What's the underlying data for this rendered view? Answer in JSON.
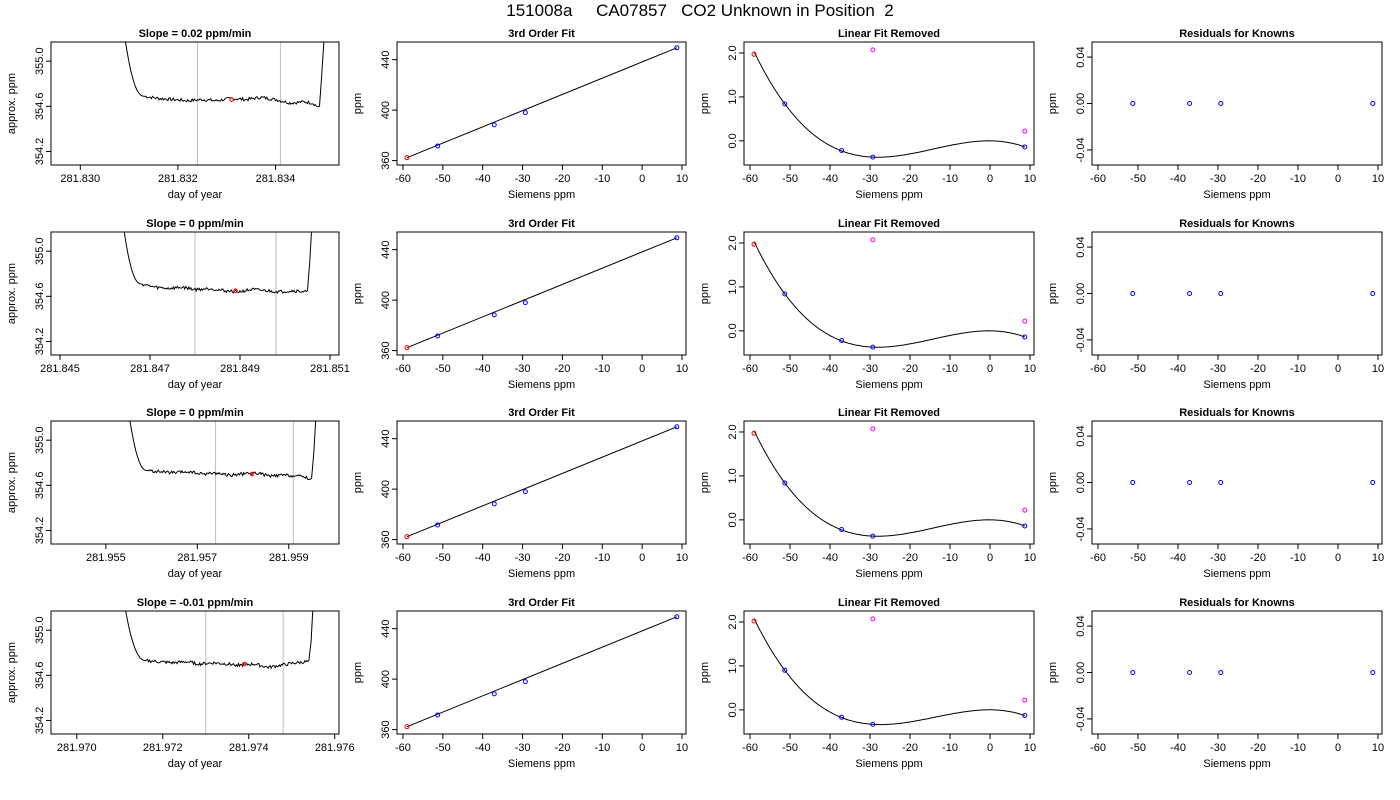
{
  "figure": {
    "title": "151008a     CA07857   CO2 Unknown in Position  2"
  },
  "chart_data": [
    {
      "type": "line",
      "row": 1,
      "col": 1,
      "title": "Slope =  0.02  ppm/min",
      "xlabel": "day of year",
      "ylabel": "approx. ppm",
      "xlim": [
        281.8294,
        281.8353
      ],
      "ylim": [
        354.08,
        355.17
      ],
      "xticks": [
        281.83,
        281.832,
        281.834
      ],
      "xticklabels": [
        "281.830",
        "281.832",
        "281.834"
      ],
      "yticks": [
        354.2,
        354.6,
        355.0
      ],
      "yticklabels": [
        "354.2",
        "354.6",
        "355.0"
      ],
      "vlines": [
        281.8324,
        281.8341
      ],
      "trace": {
        "start": 281.8309,
        "rise_end": 281.8311,
        "plateau_start": 281.8313,
        "end": 281.835,
        "final_rise_start": 281.8349,
        "top": 355.25,
        "plateau": [
          354.69,
          354.67,
          354.66,
          354.65,
          354.66,
          354.65,
          354.67,
          354.66,
          354.68,
          354.66,
          354.63,
          354.64,
          354.62
        ],
        "final_dip": 354.59
      },
      "marker": {
        "x": 281.8331,
        "y": 354.66
      }
    },
    {
      "type": "line",
      "row": 1,
      "col": 2,
      "title": "3rd Order Fit",
      "xlabel": "Siemens ppm",
      "ylabel": "ppm",
      "xlim": [
        -61.5,
        11.0
      ],
      "ylim": [
        356.5,
        454.0
      ],
      "xticks": [
        -60,
        -50,
        -40,
        -30,
        -20,
        -10,
        0,
        10
      ],
      "yticks": [
        360,
        400,
        440
      ],
      "yticklabels": [
        "360",
        "400",
        "440"
      ],
      "knowns": [
        {
          "x": -51.3,
          "y": 371.6
        },
        {
          "x": -37.1,
          "y": 388.3
        },
        {
          "x": -29.3,
          "y": 398.0
        },
        {
          "x": 8.7,
          "y": 449.4
        }
      ],
      "unknown": {
        "x": -59.0,
        "y": 362.3
      },
      "fit_line": {
        "x1": -59.0,
        "y1": 362.3,
        "x2": 8.7,
        "y2": 449.4
      }
    },
    {
      "type": "line",
      "row": 1,
      "col": 3,
      "title": "Linear Fit Removed",
      "xlabel": "Siemens ppm",
      "ylabel": "ppm",
      "xlim": [
        -61.5,
        11.0
      ],
      "ylim": [
        -0.55,
        2.25
      ],
      "xticks": [
        -60,
        -50,
        -40,
        -30,
        -20,
        -10,
        0,
        10
      ],
      "yticks": [
        0.0,
        1.0,
        2.0
      ],
      "yticklabels": [
        "0.0",
        "1.0",
        "2.0"
      ],
      "knowns": [
        {
          "x": -51.3,
          "y": 0.84
        },
        {
          "x": -37.1,
          "y": -0.22
        },
        {
          "x": -29.3,
          "y": -0.37
        },
        {
          "x": 8.7,
          "y": -0.14
        }
      ],
      "unknown": {
        "x": -59.0,
        "y": 1.97
      },
      "magenta": [
        {
          "x": -29.3,
          "y": 2.07
        },
        {
          "x": 8.7,
          "y": 0.22
        }
      ],
      "curve": {
        "x0": -59.0,
        "x1": 8.7,
        "ya": -0.37,
        "yb": -0.14
      }
    },
    {
      "type": "scatter",
      "row": 1,
      "col": 4,
      "title": "Residuals for Knowns",
      "xlabel": "Siemens ppm",
      "ylabel": "ppm",
      "xlim": [
        -61.5,
        11.0
      ],
      "ylim": [
        -0.053,
        0.053
      ],
      "xticks": [
        -60,
        -50,
        -40,
        -30,
        -20,
        -10,
        0,
        10
      ],
      "yticks": [
        -0.04,
        0.0,
        0.04
      ],
      "yticklabels": [
        "-0.04",
        "0.00",
        "0.04"
      ],
      "points": [
        {
          "x": -51.3,
          "y": 0.0
        },
        {
          "x": -37.1,
          "y": 0.0
        },
        {
          "x": -29.3,
          "y": 0.0
        },
        {
          "x": 8.7,
          "y": 0.0
        }
      ]
    },
    {
      "type": "line",
      "row": 2,
      "col": 1,
      "title": "Slope =  0  ppm/min",
      "xlabel": "day of year",
      "ylabel": "approx. ppm",
      "xlim": [
        281.8448,
        281.8512
      ],
      "ylim": [
        354.08,
        355.17
      ],
      "xticks": [
        281.845,
        281.847,
        281.849,
        281.851
      ],
      "xticklabels": [
        "281.845",
        "281.847",
        "281.849",
        "281.851"
      ],
      "yticks": [
        354.2,
        354.6,
        355.0
      ],
      "yticklabels": [
        "354.2",
        "354.6",
        "355.0"
      ],
      "vlines": [
        281.848,
        281.8498
      ],
      "trace": {
        "start": 281.8464,
        "rise_end": 281.8466,
        "plateau_start": 281.8468,
        "end": 281.8506,
        "final_rise_start": 281.8505,
        "top": 355.25,
        "plateau": [
          354.71,
          354.68,
          354.67,
          354.68,
          354.66,
          354.67,
          354.65,
          354.64,
          354.66,
          354.65,
          354.64,
          354.65,
          354.64
        ],
        "final_dip": 354.64
      },
      "marker": {
        "x": 281.8489,
        "y": 354.65
      }
    },
    {
      "type": "line",
      "row": 2,
      "col": 2,
      "title": "3rd Order Fit",
      "xlabel": "Siemens ppm",
      "ylabel": "ppm",
      "xlim": [
        -61.5,
        11.0
      ],
      "ylim": [
        356.5,
        454.0
      ],
      "xticks": [
        -60,
        -50,
        -40,
        -30,
        -20,
        -10,
        0,
        10
      ],
      "yticks": [
        360,
        400,
        440
      ],
      "yticklabels": [
        "360",
        "400",
        "440"
      ],
      "knowns": [
        {
          "x": -51.3,
          "y": 371.6
        },
        {
          "x": -37.1,
          "y": 388.3
        },
        {
          "x": -29.3,
          "y": 398.0
        },
        {
          "x": 8.7,
          "y": 449.4
        }
      ],
      "unknown": {
        "x": -59.0,
        "y": 362.3
      },
      "fit_line": {
        "x1": -59.0,
        "y1": 362.3,
        "x2": 8.7,
        "y2": 449.4
      }
    },
    {
      "type": "line",
      "row": 2,
      "col": 3,
      "title": "Linear Fit Removed",
      "xlabel": "Siemens ppm",
      "ylabel": "ppm",
      "xlim": [
        -61.5,
        11.0
      ],
      "ylim": [
        -0.55,
        2.25
      ],
      "xticks": [
        -60,
        -50,
        -40,
        -30,
        -20,
        -10,
        0,
        10
      ],
      "yticks": [
        0.0,
        1.0,
        2.0
      ],
      "yticklabels": [
        "0.0",
        "1.0",
        "2.0"
      ],
      "knowns": [
        {
          "x": -51.3,
          "y": 0.84
        },
        {
          "x": -37.1,
          "y": -0.22
        },
        {
          "x": -29.3,
          "y": -0.37
        },
        {
          "x": 8.7,
          "y": -0.14
        }
      ],
      "unknown": {
        "x": -59.0,
        "y": 1.97
      },
      "magenta": [
        {
          "x": -29.3,
          "y": 2.07
        },
        {
          "x": 8.7,
          "y": 0.22
        }
      ],
      "curve": {
        "x0": -59.0,
        "x1": 8.7,
        "ya": -0.37,
        "yb": -0.14
      }
    },
    {
      "type": "scatter",
      "row": 2,
      "col": 4,
      "title": "Residuals for Knowns",
      "xlabel": "Siemens ppm",
      "ylabel": "ppm",
      "xlim": [
        -61.5,
        11.0
      ],
      "ylim": [
        -0.053,
        0.053
      ],
      "xticks": [
        -60,
        -50,
        -40,
        -30,
        -20,
        -10,
        0,
        10
      ],
      "yticks": [
        -0.04,
        0.0,
        0.04
      ],
      "yticklabels": [
        "-0.04",
        "0.00",
        "0.04"
      ],
      "points": [
        {
          "x": -51.3,
          "y": 0.0
        },
        {
          "x": -37.1,
          "y": 0.0
        },
        {
          "x": -29.3,
          "y": 0.0
        },
        {
          "x": 8.7,
          "y": 0.0
        }
      ]
    },
    {
      "type": "line",
      "row": 3,
      "col": 1,
      "title": "Slope =  0  ppm/min",
      "xlabel": "day of year",
      "ylabel": "approx. ppm",
      "xlim": [
        281.9538,
        281.9601
      ],
      "ylim": [
        354.08,
        355.17
      ],
      "xticks": [
        281.955,
        281.957,
        281.959
      ],
      "xticklabels": [
        "281.955",
        "281.957",
        "281.959"
      ],
      "yticks": [
        354.2,
        354.6,
        355.0
      ],
      "yticklabels": [
        "354.2",
        "354.6",
        "355.0"
      ],
      "vlines": [
        281.9574,
        281.9591
      ],
      "trace": {
        "start": 281.9555,
        "rise_end": 281.9557,
        "plateau_start": 281.9559,
        "end": 281.9596,
        "final_rise_start": 281.9595,
        "top": 355.25,
        "plateau": [
          354.73,
          354.72,
          354.71,
          354.72,
          354.7,
          354.71,
          354.69,
          354.7,
          354.71,
          354.68,
          354.69,
          354.68,
          354.67
        ],
        "final_dip": 354.65
      },
      "marker": {
        "x": 281.9582,
        "y": 354.7
      }
    },
    {
      "type": "line",
      "row": 3,
      "col": 2,
      "title": "3rd Order Fit",
      "xlabel": "Siemens ppm",
      "ylabel": "ppm",
      "xlim": [
        -61.5,
        11.0
      ],
      "ylim": [
        356.5,
        454.0
      ],
      "xticks": [
        -60,
        -50,
        -40,
        -30,
        -20,
        -10,
        0,
        10
      ],
      "yticks": [
        360,
        400,
        440
      ],
      "yticklabels": [
        "360",
        "400",
        "440"
      ],
      "knowns": [
        {
          "x": -51.3,
          "y": 371.6
        },
        {
          "x": -37.1,
          "y": 388.3
        },
        {
          "x": -29.3,
          "y": 398.0
        },
        {
          "x": 8.7,
          "y": 449.4
        }
      ],
      "unknown": {
        "x": -59.0,
        "y": 362.3
      },
      "fit_line": {
        "x1": -59.0,
        "y1": 362.3,
        "x2": 8.7,
        "y2": 449.4
      }
    },
    {
      "type": "line",
      "row": 3,
      "col": 3,
      "title": "Linear Fit Removed",
      "xlabel": "Siemens ppm",
      "ylabel": "ppm",
      "xlim": [
        -61.5,
        11.0
      ],
      "ylim": [
        -0.55,
        2.25
      ],
      "xticks": [
        -60,
        -50,
        -40,
        -30,
        -20,
        -10,
        0,
        10
      ],
      "yticks": [
        0.0,
        1.0,
        2.0
      ],
      "yticklabels": [
        "0.0",
        "1.0",
        "2.0"
      ],
      "knowns": [
        {
          "x": -51.3,
          "y": 0.84
        },
        {
          "x": -37.1,
          "y": -0.22
        },
        {
          "x": -29.3,
          "y": -0.37
        },
        {
          "x": 8.7,
          "y": -0.14
        }
      ],
      "unknown": {
        "x": -59.0,
        "y": 1.97
      },
      "magenta": [
        {
          "x": -29.3,
          "y": 2.07
        },
        {
          "x": 8.7,
          "y": 0.22
        }
      ],
      "curve": {
        "x0": -59.0,
        "x1": 8.7,
        "ya": -0.37,
        "yb": -0.14
      }
    },
    {
      "type": "scatter",
      "row": 3,
      "col": 4,
      "title": "Residuals for Knowns",
      "xlabel": "Siemens ppm",
      "ylabel": "ppm",
      "xlim": [
        -61.5,
        11.0
      ],
      "ylim": [
        -0.053,
        0.053
      ],
      "xticks": [
        -60,
        -50,
        -40,
        -30,
        -20,
        -10,
        0,
        10
      ],
      "yticks": [
        -0.04,
        0.0,
        0.04
      ],
      "yticklabels": [
        "-0.04",
        "0.00",
        "0.04"
      ],
      "points": [
        {
          "x": -51.3,
          "y": 0.0
        },
        {
          "x": -37.1,
          "y": 0.0
        },
        {
          "x": -29.3,
          "y": 0.0
        },
        {
          "x": 8.7,
          "y": 0.0
        }
      ]
    },
    {
      "type": "line",
      "row": 4,
      "col": 1,
      "title": "Slope =  -0.01  ppm/min",
      "xlabel": "day of year",
      "ylabel": "approx. ppm",
      "xlim": [
        281.9694,
        281.9761
      ],
      "ylim": [
        354.08,
        355.17
      ],
      "xticks": [
        281.97,
        281.972,
        281.974,
        281.976
      ],
      "xticklabels": [
        "281.970",
        "281.972",
        "281.974",
        "281.976"
      ],
      "yticks": [
        354.2,
        354.6,
        355.0
      ],
      "yticklabels": [
        "354.2",
        "354.6",
        "355.0"
      ],
      "vlines": [
        281.973,
        281.9748
      ],
      "trace": {
        "start": 281.9711,
        "rise_end": 281.9713,
        "plateau_start": 281.9716,
        "end": 281.9755,
        "final_rise_start": 281.9754,
        "top": 355.25,
        "plateau": [
          354.73,
          354.72,
          354.71,
          354.72,
          354.7,
          354.71,
          354.7,
          354.69,
          354.7,
          354.67,
          354.69,
          354.71,
          354.72
        ],
        "final_dip": 354.72
      },
      "marker": {
        "x": 281.9739,
        "y": 354.7
      }
    },
    {
      "type": "line",
      "row": 4,
      "col": 2,
      "title": "3rd Order Fit",
      "xlabel": "Siemens ppm",
      "ylabel": "ppm",
      "xlim": [
        -61.5,
        11.0
      ],
      "ylim": [
        356.5,
        454.0
      ],
      "xticks": [
        -60,
        -50,
        -40,
        -30,
        -20,
        -10,
        0,
        10
      ],
      "yticks": [
        360,
        400,
        440
      ],
      "yticklabels": [
        "360",
        "400",
        "440"
      ],
      "knowns": [
        {
          "x": -51.3,
          "y": 371.6
        },
        {
          "x": -37.1,
          "y": 388.3
        },
        {
          "x": -29.3,
          "y": 398.0
        },
        {
          "x": 8.7,
          "y": 449.4
        }
      ],
      "unknown": {
        "x": -59.0,
        "y": 362.3
      },
      "fit_line": {
        "x1": -59.0,
        "y1": 362.3,
        "x2": 8.7,
        "y2": 449.4
      }
    },
    {
      "type": "line",
      "row": 4,
      "col": 3,
      "title": "Linear Fit Removed",
      "xlabel": "Siemens ppm",
      "ylabel": "ppm",
      "xlim": [
        -61.5,
        11.0
      ],
      "ylim": [
        -0.55,
        2.25
      ],
      "xticks": [
        -60,
        -50,
        -40,
        -30,
        -20,
        -10,
        0,
        10
      ],
      "yticks": [
        0.0,
        1.0,
        2.0
      ],
      "yticklabels": [
        "0.0",
        "1.0",
        "2.0"
      ],
      "knowns": [
        {
          "x": -51.3,
          "y": 0.9
        },
        {
          "x": -37.1,
          "y": -0.17
        },
        {
          "x": -29.3,
          "y": -0.33
        },
        {
          "x": 8.7,
          "y": -0.13
        }
      ],
      "unknown": {
        "x": -59.0,
        "y": 2.02
      },
      "magenta": [
        {
          "x": -29.3,
          "y": 2.07
        },
        {
          "x": 8.7,
          "y": 0.22
        }
      ],
      "curve": {
        "x0": -59.0,
        "x1": 8.7,
        "ya": -0.33,
        "yb": -0.13
      }
    },
    {
      "type": "scatter",
      "row": 4,
      "col": 4,
      "title": "Residuals for Knowns",
      "xlabel": "Siemens ppm",
      "ylabel": "ppm",
      "xlim": [
        -61.5,
        11.0
      ],
      "ylim": [
        -0.053,
        0.053
      ],
      "xticks": [
        -60,
        -50,
        -40,
        -30,
        -20,
        -10,
        0,
        10
      ],
      "yticks": [
        -0.04,
        0.0,
        0.04
      ],
      "yticklabels": [
        "-0.04",
        "0.00",
        "0.04"
      ],
      "points": [
        {
          "x": -51.3,
          "y": 0.0
        },
        {
          "x": -37.1,
          "y": 0.0
        },
        {
          "x": -29.3,
          "y": 0.0
        },
        {
          "x": 8.7,
          "y": 0.0
        }
      ]
    }
  ],
  "colors": {
    "axis": "#000000",
    "trace": "#000000",
    "vline": "#bebebe",
    "marker_red": "#ff0000",
    "marker_blue": "#0000ff",
    "marker_magenta": "#ff00ff"
  }
}
